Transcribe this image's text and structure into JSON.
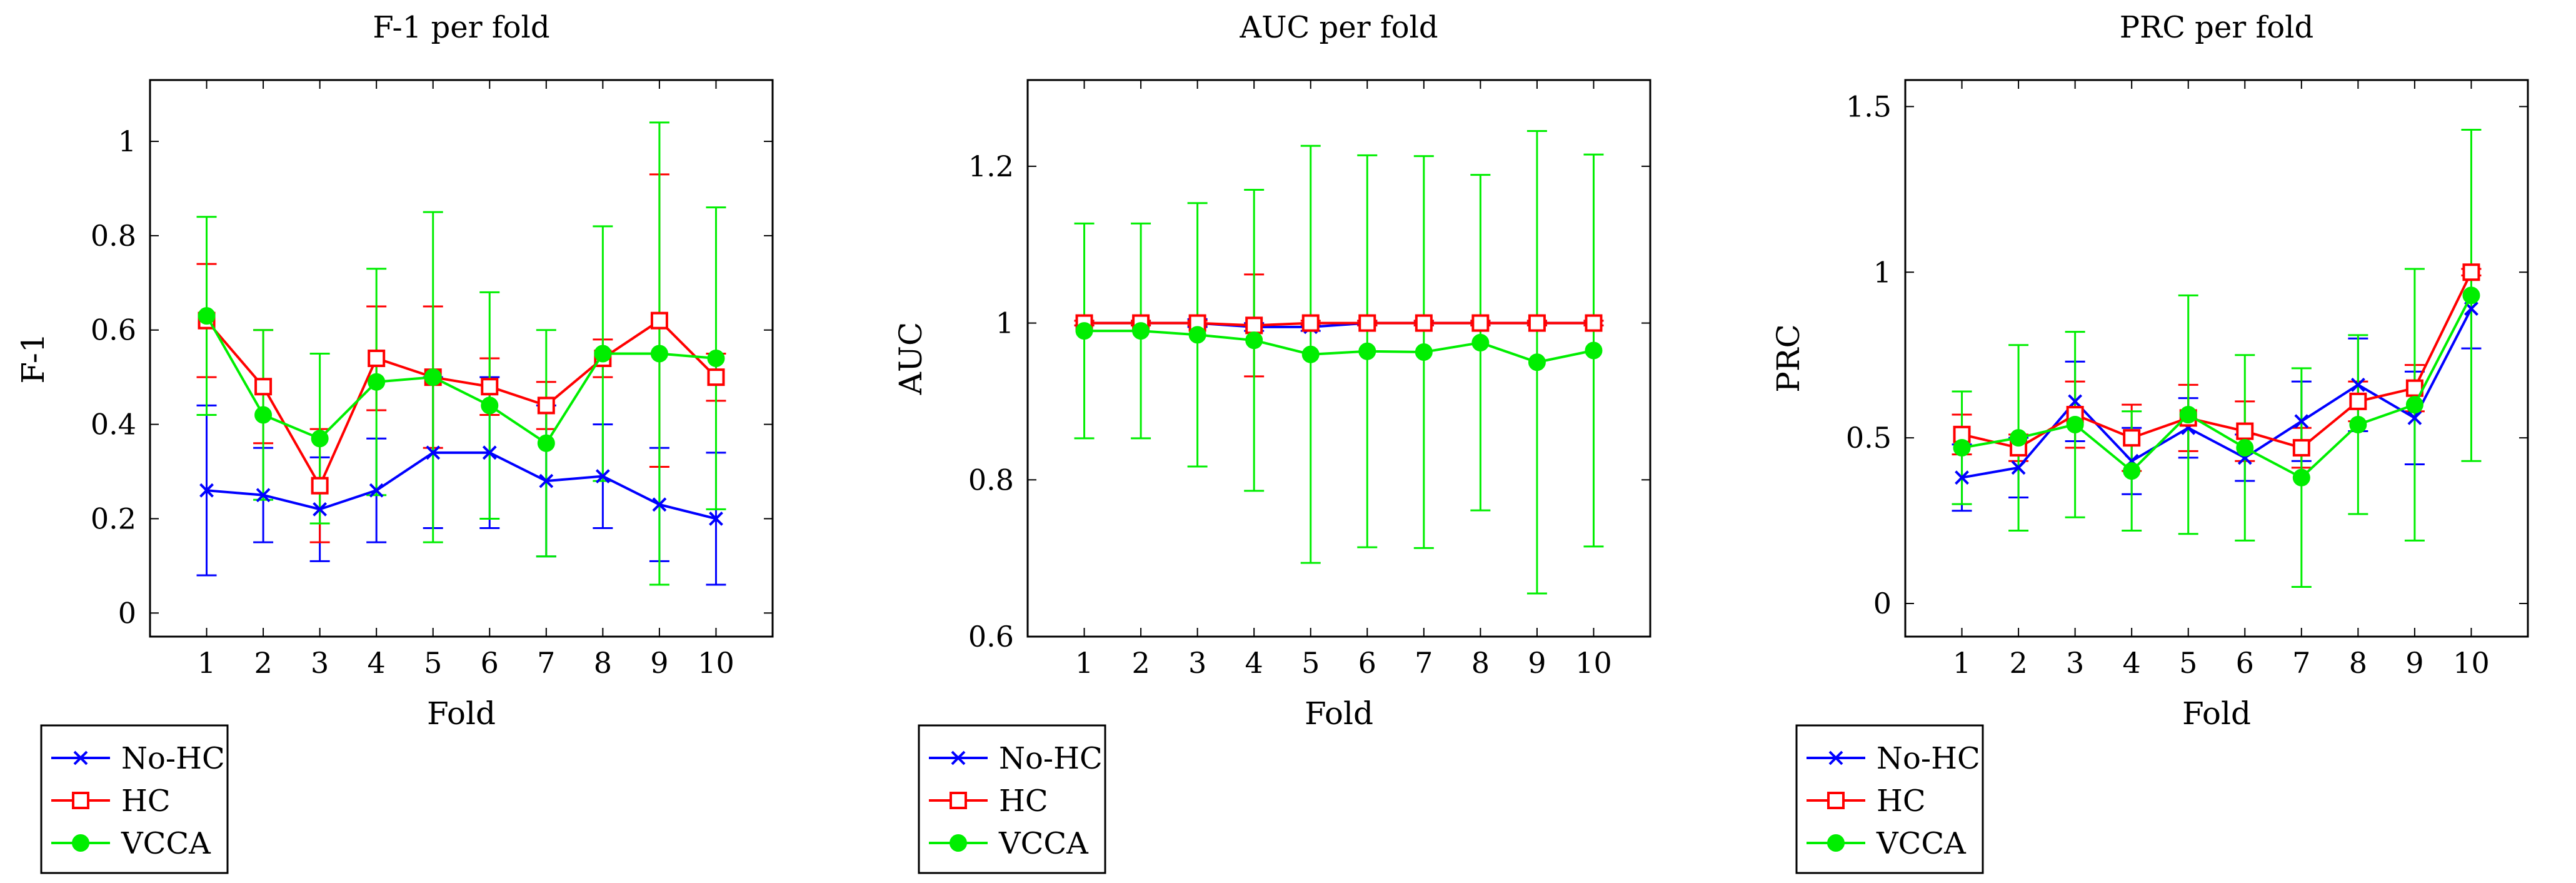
{
  "chart_data": [
    {
      "type": "line",
      "title": "F-1 per fold",
      "xlabel": "Fold",
      "ylabel": "F-1",
      "x": [
        1,
        2,
        3,
        4,
        5,
        6,
        7,
        8,
        9,
        10
      ],
      "xlim": [
        0,
        11
      ],
      "ylim": [
        -0.05,
        1.13
      ],
      "yticks": [
        0,
        0.2,
        0.4,
        0.6,
        0.8,
        1
      ],
      "ytick_labels": [
        "0",
        "0.2",
        "0.4",
        "0.6",
        "0.8",
        "1"
      ],
      "series": [
        {
          "name": "No-HC",
          "color": "#0000ff",
          "marker": "x",
          "values": [
            0.26,
            0.25,
            0.22,
            0.26,
            0.34,
            0.34,
            0.28,
            0.29,
            0.23,
            0.2
          ],
          "err": [
            0.18,
            0.1,
            0.11,
            0.11,
            0.16,
            0.16,
            0.16,
            0.11,
            0.12,
            0.14
          ]
        },
        {
          "name": "HC",
          "color": "#ff0000",
          "marker": "square",
          "values": [
            0.62,
            0.48,
            0.27,
            0.54,
            0.5,
            0.48,
            0.44,
            0.54,
            0.62,
            0.5
          ],
          "err": [
            0.12,
            0.12,
            0.12,
            0.11,
            0.15,
            0.06,
            0.05,
            0.04,
            0.31,
            0.05
          ]
        },
        {
          "name": "VCCA",
          "color": "#00ee00",
          "marker": "circle",
          "values": [
            0.63,
            0.42,
            0.37,
            0.49,
            0.5,
            0.44,
            0.36,
            0.55,
            0.55,
            0.54
          ],
          "err": [
            0.21,
            0.18,
            0.18,
            0.24,
            0.35,
            0.24,
            0.24,
            0.27,
            0.49,
            0.32
          ]
        }
      ],
      "legend": "below"
    },
    {
      "type": "line",
      "title": "AUC per fold",
      "xlabel": "Fold",
      "ylabel": "AUC",
      "x": [
        1,
        2,
        3,
        4,
        5,
        6,
        7,
        8,
        9,
        10
      ],
      "xlim": [
        0,
        11
      ],
      "ylim": [
        0.6,
        1.31
      ],
      "yticks": [
        0.6,
        0.8,
        1,
        1.2
      ],
      "ytick_labels": [
        "0.6",
        "0.8",
        "1",
        "1.2"
      ],
      "series": [
        {
          "name": "No-HC",
          "color": "#0000ff",
          "marker": "x",
          "values": [
            1.0,
            1.0,
            1.0,
            0.995,
            0.995,
            1.0,
            1.0,
            1.0,
            1.0,
            1.0
          ],
          "err": [
            0.003,
            0.003,
            0.005,
            0.005,
            0.005,
            0.003,
            0.003,
            0.003,
            0.003,
            0.003
          ]
        },
        {
          "name": "HC",
          "color": "#ff0000",
          "marker": "square",
          "values": [
            1.0,
            1.0,
            1.0,
            0.997,
            1.0,
            1.0,
            1.0,
            1.0,
            1.0,
            1.0
          ],
          "err": [
            0.003,
            0.003,
            0.003,
            0.065,
            0.003,
            0.003,
            0.003,
            0.003,
            0.003,
            0.003
          ]
        },
        {
          "name": "VCCA",
          "color": "#00ee00",
          "marker": "circle",
          "values": [
            0.99,
            0.99,
            0.985,
            0.978,
            0.96,
            0.964,
            0.963,
            0.975,
            0.95,
            0.965
          ],
          "err": [
            0.137,
            0.137,
            0.168,
            0.192,
            0.266,
            0.25,
            0.25,
            0.214,
            0.295,
            0.25
          ]
        }
      ],
      "legend": "below"
    },
    {
      "type": "line",
      "title": "PRC per fold",
      "xlabel": "Fold",
      "ylabel": "PRC",
      "x": [
        1,
        2,
        3,
        4,
        5,
        6,
        7,
        8,
        9,
        10
      ],
      "xlim": [
        0,
        11
      ],
      "ylim": [
        -0.1,
        1.58
      ],
      "yticks": [
        0,
        0.5,
        1,
        1.5
      ],
      "ytick_labels": [
        "0",
        "0.5",
        "1",
        "1.5"
      ],
      "series": [
        {
          "name": "No-HC",
          "color": "#0000ff",
          "marker": "x",
          "values": [
            0.38,
            0.41,
            0.61,
            0.43,
            0.53,
            0.44,
            0.55,
            0.66,
            0.56,
            0.89
          ],
          "err": [
            0.1,
            0.09,
            0.12,
            0.1,
            0.09,
            0.07,
            0.12,
            0.14,
            0.14,
            0.12
          ]
        },
        {
          "name": "HC",
          "color": "#ff0000",
          "marker": "square",
          "values": [
            0.51,
            0.47,
            0.57,
            0.5,
            0.56,
            0.52,
            0.47,
            0.61,
            0.65,
            1.0
          ],
          "err": [
            0.06,
            0.04,
            0.1,
            0.1,
            0.1,
            0.09,
            0.06,
            0.06,
            0.07,
            0.01
          ]
        },
        {
          "name": "VCCA",
          "color": "#00ee00",
          "marker": "circle",
          "values": [
            0.47,
            0.5,
            0.54,
            0.4,
            0.57,
            0.47,
            0.38,
            0.54,
            0.6,
            0.93
          ],
          "err": [
            0.17,
            0.28,
            0.28,
            0.18,
            0.36,
            0.28,
            0.33,
            0.27,
            0.41,
            0.5
          ]
        }
      ],
      "legend": "below"
    }
  ]
}
